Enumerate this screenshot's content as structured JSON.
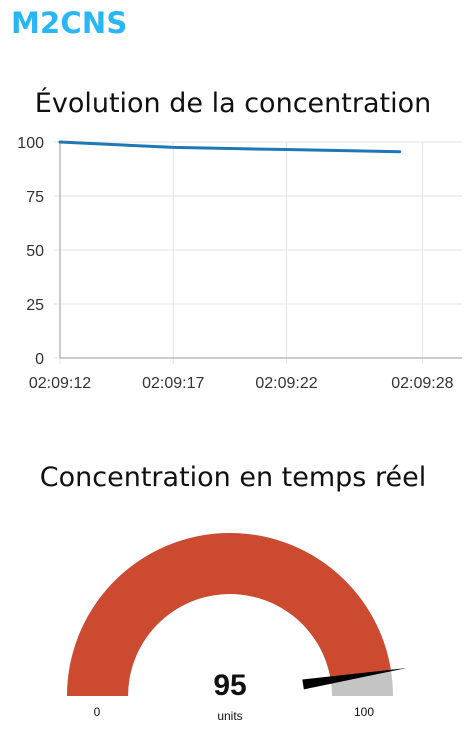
{
  "app": {
    "title": "M2CNS"
  },
  "chart": {
    "title": "Évolution de la concentration"
  },
  "chart_data": {
    "type": "line",
    "title": "Évolution de la concentration",
    "xlabel": "",
    "ylabel": "",
    "x_ticks": [
      "02:09:12",
      "02:09:17",
      "02:09:22",
      "02:09:28"
    ],
    "x_tick_seconds": [
      12,
      17,
      22,
      28
    ],
    "y_ticks": [
      0,
      25,
      50,
      75,
      100
    ],
    "ylim": [
      0,
      100
    ],
    "xlim_seconds": [
      12,
      29.75
    ],
    "grid": true,
    "series": [
      {
        "x_seconds": [
          12,
          17,
          22,
          27
        ],
        "values": [
          100,
          97.5,
          96.5,
          95.5
        ],
        "color": "#1f77b4"
      }
    ]
  },
  "gauge": {
    "title": "Concentration en temps réel",
    "value": 95,
    "value_label": "95",
    "units": "units",
    "min": 0,
    "max": 100,
    "min_label": "0",
    "max_label": "100",
    "fill_color": "#cc4a30",
    "track_color": "#c4c4c4",
    "needle_color": "#000000"
  }
}
